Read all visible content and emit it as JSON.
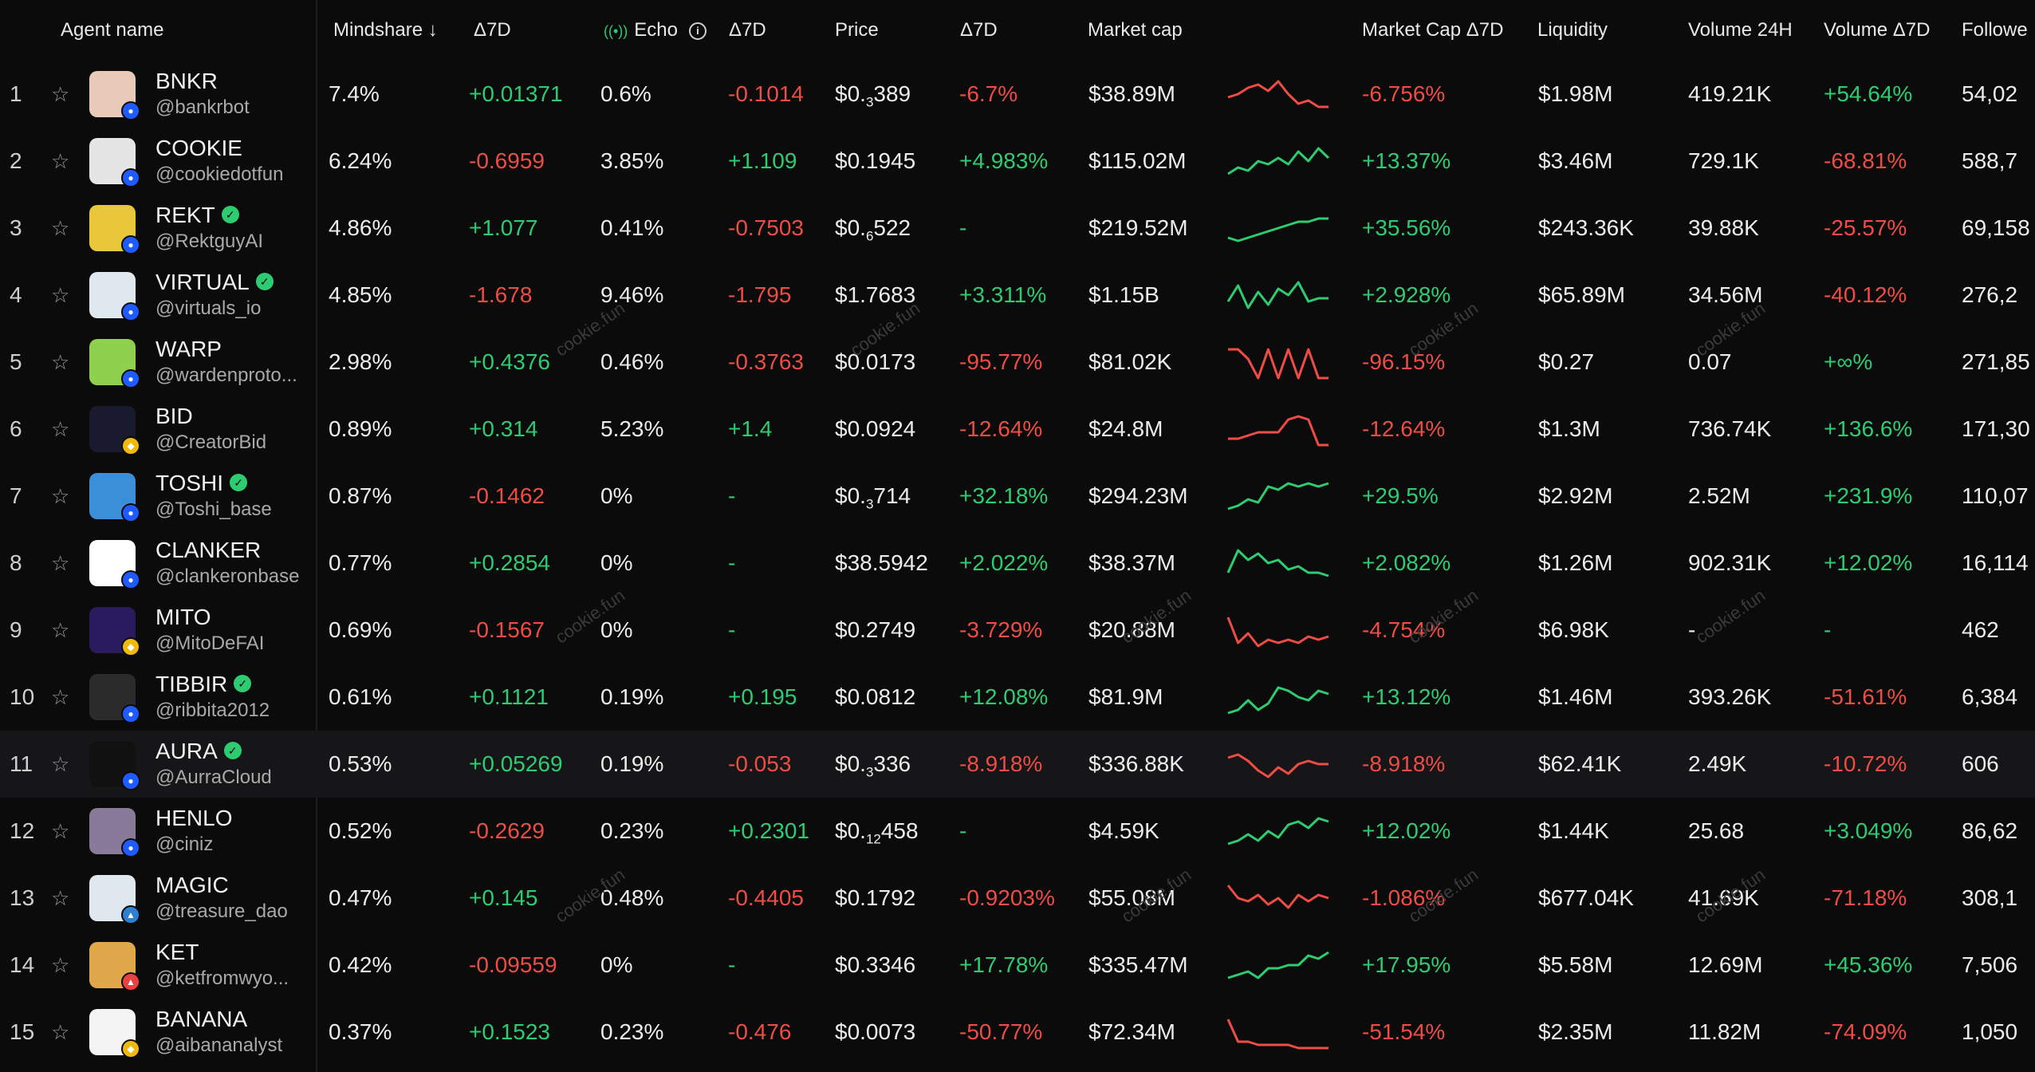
{
  "headers": {
    "agent_name": "Agent name",
    "mindshare": "Mindshare ↓",
    "mindshare_delta": "Δ7D",
    "echo": "Echo",
    "echo_delta": "Δ7D",
    "price": "Price",
    "price_delta": "Δ7D",
    "market_cap": "Market cap",
    "market_cap_delta": "Market Cap Δ7D",
    "liquidity": "Liquidity",
    "volume": "Volume 24H",
    "volume_delta": "Volume Δ7D",
    "followers": "Followe"
  },
  "watermark": "cookie.fun",
  "colors": {
    "positive": "#2ecc71",
    "negative": "#ef4c43",
    "background": "#0b0b0c"
  },
  "rows": [
    {
      "rank": "1",
      "name": "BNKR",
      "handle": "@bankrbot",
      "verified": false,
      "avatar_color": "#e9c9b8",
      "badge": "base",
      "mindshare": "7.4%",
      "ms_delta": "+0.01371",
      "ms_sign": "pos",
      "echo": "0.6%",
      "echo_delta": "-0.1014",
      "echo_sign": "neg",
      "price_prefix": "$0.",
      "price_sub": "3",
      "price_rest": "389",
      "price_delta": "-6.7%",
      "pd_sign": "neg",
      "mcap": "$38.89M",
      "spark_sign": "neg",
      "spark": [
        5,
        6,
        8,
        9,
        7,
        10,
        6,
        3,
        4,
        2,
        2
      ],
      "mcap_delta": "-6.756%",
      "md_sign": "neg",
      "liquidity": "$1.98M",
      "volume": "419.21K",
      "vol_delta": "+54.64%",
      "vd_sign": "pos",
      "followers": "54,02"
    },
    {
      "rank": "2",
      "name": "COOKIE",
      "handle": "@cookiedotfun",
      "verified": false,
      "avatar_color": "#e5e5e5",
      "badge": "base",
      "mindshare": "6.24%",
      "ms_delta": "-0.6959",
      "ms_sign": "neg",
      "echo": "3.85%",
      "echo_delta": "+1.109",
      "echo_sign": "pos",
      "price_prefix": "$0.1945",
      "price_sub": "",
      "price_rest": "",
      "price_delta": "+4.983%",
      "pd_sign": "pos",
      "mcap": "$115.02M",
      "spark_sign": "pos",
      "spark": [
        2,
        4,
        3,
        6,
        5,
        7,
        5,
        9,
        6,
        10,
        7
      ],
      "mcap_delta": "+13.37%",
      "md_sign": "pos",
      "liquidity": "$3.46M",
      "volume": "729.1K",
      "vol_delta": "-68.81%",
      "vd_sign": "neg",
      "followers": "588,7"
    },
    {
      "rank": "3",
      "name": "REKT",
      "handle": "@RektguyAI",
      "verified": true,
      "avatar_color": "#e8c73a",
      "badge": "base",
      "mindshare": "4.86%",
      "ms_delta": "+1.077",
      "ms_sign": "pos",
      "echo": "0.41%",
      "echo_delta": "-0.7503",
      "echo_sign": "neg",
      "price_prefix": "$0.",
      "price_sub": "6",
      "price_rest": "522",
      "price_delta": "-",
      "pd_sign": "pos",
      "mcap": "$219.52M",
      "spark_sign": "pos",
      "spark": [
        3,
        2,
        3,
        4,
        5,
        6,
        7,
        8,
        8,
        9,
        9
      ],
      "mcap_delta": "+35.56%",
      "md_sign": "pos",
      "liquidity": "$243.36K",
      "volume": "39.88K",
      "vol_delta": "-25.57%",
      "vd_sign": "neg",
      "followers": "69,158"
    },
    {
      "rank": "4",
      "name": "VIRTUAL",
      "handle": "@virtuals_io",
      "verified": true,
      "avatar_color": "#dfe8ee",
      "badge": "base",
      "mindshare": "4.85%",
      "ms_delta": "-1.678",
      "ms_sign": "neg",
      "echo": "9.46%",
      "echo_delta": "-1.795",
      "echo_sign": "neg",
      "price_prefix": "$1.7683",
      "price_sub": "",
      "price_rest": "",
      "price_delta": "+3.311%",
      "pd_sign": "pos",
      "mcap": "$1.15B",
      "spark_sign": "pos",
      "spark": [
        4,
        9,
        2,
        7,
        3,
        8,
        6,
        10,
        4,
        5,
        5
      ],
      "mcap_delta": "+2.928%",
      "md_sign": "pos",
      "liquidity": "$65.89M",
      "volume": "34.56M",
      "vol_delta": "-40.12%",
      "vd_sign": "neg",
      "followers": "276,2"
    },
    {
      "rank": "5",
      "name": "WARP",
      "handle": "@wardenproto...",
      "verified": false,
      "avatar_color": "#8fd14f",
      "badge": "base",
      "mindshare": "2.98%",
      "ms_delta": "+0.4376",
      "ms_sign": "pos",
      "echo": "0.46%",
      "echo_delta": "-0.3763",
      "echo_sign": "neg",
      "price_prefix": "$0.0173",
      "price_sub": "",
      "price_rest": "",
      "price_delta": "-95.77%",
      "pd_sign": "neg",
      "mcap": "$81.02K",
      "spark_sign": "neg",
      "spark": [
        10,
        10,
        7,
        1,
        10,
        1,
        10,
        1,
        10,
        1,
        1
      ],
      "mcap_delta": "-96.15%",
      "md_sign": "neg",
      "liquidity": "$0.27",
      "volume": "0.07",
      "vol_delta": "+∞%",
      "vd_sign": "pos",
      "followers": "271,85"
    },
    {
      "rank": "6",
      "name": "BID",
      "handle": "@CreatorBid",
      "verified": false,
      "avatar_color": "#1a1a2e",
      "badge": "bnb",
      "mindshare": "0.89%",
      "ms_delta": "+0.314",
      "ms_sign": "pos",
      "echo": "5.23%",
      "echo_delta": "+1.4",
      "echo_sign": "pos",
      "price_prefix": "$0.0924",
      "price_sub": "",
      "price_rest": "",
      "price_delta": "-12.64%",
      "pd_sign": "neg",
      "mcap": "$24.8M",
      "spark_sign": "neg",
      "spark": [
        3,
        3,
        4,
        5,
        5,
        5,
        9,
        10,
        9,
        1,
        1
      ],
      "mcap_delta": "-12.64%",
      "md_sign": "neg",
      "liquidity": "$1.3M",
      "volume": "736.74K",
      "vol_delta": "+136.6%",
      "vd_sign": "pos",
      "followers": "171,30"
    },
    {
      "rank": "7",
      "name": "TOSHI",
      "handle": "@Toshi_base",
      "verified": true,
      "avatar_color": "#3b8fd9",
      "badge": "base",
      "mindshare": "0.87%",
      "ms_delta": "-0.1462",
      "ms_sign": "neg",
      "echo": "0%",
      "echo_delta": "-",
      "echo_sign": "pos",
      "price_prefix": "$0.",
      "price_sub": "3",
      "price_rest": "714",
      "price_delta": "+32.18%",
      "pd_sign": "pos",
      "mcap": "$294.23M",
      "spark_sign": "pos",
      "spark": [
        2,
        3,
        5,
        4,
        9,
        8,
        10,
        9,
        10,
        9,
        10
      ],
      "mcap_delta": "+29.5%",
      "md_sign": "pos",
      "liquidity": "$2.92M",
      "volume": "2.52M",
      "vol_delta": "+231.9%",
      "vd_sign": "pos",
      "followers": "110,07"
    },
    {
      "rank": "8",
      "name": "CLANKER",
      "handle": "@clankeronbase",
      "verified": false,
      "avatar_color": "#ffffff",
      "badge": "base",
      "mindshare": "0.77%",
      "ms_delta": "+0.2854",
      "ms_sign": "pos",
      "echo": "0%",
      "echo_delta": "-",
      "echo_sign": "pos",
      "price_prefix": "$38.5942",
      "price_sub": "",
      "price_rest": "",
      "price_delta": "+2.022%",
      "pd_sign": "pos",
      "mcap": "$38.37M",
      "spark_sign": "pos",
      "spark": [
        3,
        10,
        7,
        9,
        6,
        7,
        4,
        5,
        3,
        3,
        2
      ],
      "mcap_delta": "+2.082%",
      "md_sign": "pos",
      "liquidity": "$1.26M",
      "volume": "902.31K",
      "vol_delta": "+12.02%",
      "vd_sign": "pos",
      "followers": "16,114"
    },
    {
      "rank": "9",
      "name": "MITO",
      "handle": "@MitoDeFAI",
      "verified": false,
      "avatar_color": "#2a1a5e",
      "badge": "bnb",
      "mindshare": "0.69%",
      "ms_delta": "-0.1567",
      "ms_sign": "neg",
      "echo": "0%",
      "echo_delta": "-",
      "echo_sign": "pos",
      "price_prefix": "$0.2749",
      "price_sub": "",
      "price_rest": "",
      "price_delta": "-3.729%",
      "pd_sign": "neg",
      "mcap": "$20.88M",
      "spark_sign": "neg",
      "spark": [
        10,
        2,
        5,
        1,
        3,
        2,
        3,
        2,
        4,
        3,
        4
      ],
      "mcap_delta": "-4.754%",
      "md_sign": "neg",
      "liquidity": "$6.98K",
      "volume": "-",
      "vol_delta": "-",
      "vd_sign": "pos",
      "followers": "462"
    },
    {
      "rank": "10",
      "name": "TIBBIR",
      "handle": "@ribbita2012",
      "verified": true,
      "avatar_color": "#2b2b2b",
      "badge": "base",
      "mindshare": "0.61%",
      "ms_delta": "+0.1121",
      "ms_sign": "pos",
      "echo": "0.19%",
      "echo_delta": "+0.195",
      "echo_sign": "pos",
      "price_prefix": "$0.0812",
      "price_sub": "",
      "price_rest": "",
      "price_delta": "+12.08%",
      "pd_sign": "pos",
      "mcap": "$81.9M",
      "spark_sign": "pos",
      "spark": [
        1,
        2,
        5,
        2,
        4,
        9,
        8,
        6,
        5,
        8,
        7
      ],
      "mcap_delta": "+13.12%",
      "md_sign": "pos",
      "liquidity": "$1.46M",
      "volume": "393.26K",
      "vol_delta": "-51.61%",
      "vd_sign": "neg",
      "followers": "6,384"
    },
    {
      "rank": "11",
      "name": "AURA",
      "handle": "@AurraCloud",
      "verified": true,
      "avatar_color": "#111111",
      "badge": "base",
      "mindshare": "0.53%",
      "ms_delta": "+0.05269",
      "ms_sign": "pos",
      "echo": "0.19%",
      "echo_delta": "-0.053",
      "echo_sign": "neg",
      "price_prefix": "$0.",
      "price_sub": "3",
      "price_rest": "336",
      "price_delta": "-8.918%",
      "pd_sign": "neg",
      "mcap": "$336.88K",
      "spark_sign": "neg",
      "spark": [
        8,
        9,
        7,
        4,
        2,
        5,
        3,
        6,
        7,
        6,
        6
      ],
      "mcap_delta": "-8.918%",
      "md_sign": "neg",
      "liquidity": "$62.41K",
      "volume": "2.49K",
      "vol_delta": "-10.72%",
      "vd_sign": "neg",
      "followers": "606",
      "highlight": true
    },
    {
      "rank": "12",
      "name": "HENLO",
      "handle": "@ciniz",
      "verified": false,
      "avatar_color": "#8a7a9a",
      "badge": "base",
      "mindshare": "0.52%",
      "ms_delta": "-0.2629",
      "ms_sign": "neg",
      "echo": "0.23%",
      "echo_delta": "+0.2301",
      "echo_sign": "pos",
      "price_prefix": "$0.",
      "price_sub": "12",
      "price_rest": "458",
      "price_delta": "-",
      "pd_sign": "pos",
      "mcap": "$4.59K",
      "spark_sign": "pos",
      "spark": [
        2,
        3,
        5,
        3,
        6,
        4,
        8,
        9,
        7,
        10,
        9
      ],
      "mcap_delta": "+12.02%",
      "md_sign": "pos",
      "liquidity": "$1.44K",
      "volume": "25.68",
      "vol_delta": "+3.049%",
      "vd_sign": "pos",
      "followers": "86,62"
    },
    {
      "rank": "13",
      "name": "MAGIC",
      "handle": "@treasure_dao",
      "verified": false,
      "avatar_color": "#dfe8ee",
      "badge": "arb",
      "mindshare": "0.47%",
      "ms_delta": "+0.145",
      "ms_sign": "pos",
      "echo": "0.48%",
      "echo_delta": "-0.4405",
      "echo_sign": "neg",
      "price_prefix": "$0.1792",
      "price_sub": "",
      "price_rest": "",
      "price_delta": "-0.9203%",
      "pd_sign": "neg",
      "mcap": "$55.08M",
      "spark_sign": "neg",
      "spark": [
        10,
        6,
        5,
        7,
        4,
        6,
        3,
        7,
        5,
        7,
        6
      ],
      "mcap_delta": "-1.086%",
      "md_sign": "neg",
      "liquidity": "$677.04K",
      "volume": "41.69K",
      "vol_delta": "-71.18%",
      "vd_sign": "neg",
      "followers": "308,1"
    },
    {
      "rank": "14",
      "name": "KET",
      "handle": "@ketfromwyo...",
      "verified": false,
      "avatar_color": "#e0a84a",
      "badge": "avax",
      "mindshare": "0.42%",
      "ms_delta": "-0.09559",
      "ms_sign": "neg",
      "echo": "0%",
      "echo_delta": "-",
      "echo_sign": "pos",
      "price_prefix": "$0.3346",
      "price_sub": "",
      "price_rest": "",
      "price_delta": "+17.78%",
      "pd_sign": "pos",
      "mcap": "$335.47M",
      "spark_sign": "pos",
      "spark": [
        2,
        3,
        4,
        2,
        5,
        5,
        6,
        6,
        9,
        8,
        10
      ],
      "mcap_delta": "+17.95%",
      "md_sign": "pos",
      "liquidity": "$5.58M",
      "volume": "12.69M",
      "vol_delta": "+45.36%",
      "vd_sign": "pos",
      "followers": "7,506"
    },
    {
      "rank": "15",
      "name": "BANANA",
      "handle": "@aibananalyst",
      "verified": false,
      "avatar_color": "#f4f4f4",
      "badge": "bnb",
      "mindshare": "0.37%",
      "ms_delta": "+0.1523",
      "ms_sign": "pos",
      "echo": "0.23%",
      "echo_delta": "-0.476",
      "echo_sign": "neg",
      "price_prefix": "$0.0073",
      "price_sub": "",
      "price_rest": "",
      "price_delta": "-50.77%",
      "pd_sign": "neg",
      "mcap": "$72.34M",
      "spark_sign": "neg",
      "spark": [
        10,
        3,
        3,
        2,
        2,
        2,
        2,
        1,
        1,
        1,
        1
      ],
      "mcap_delta": "-51.54%",
      "md_sign": "neg",
      "liquidity": "$2.35M",
      "volume": "11.82M",
      "vol_delta": "-74.09%",
      "vd_sign": "neg",
      "followers": "1,050"
    }
  ]
}
